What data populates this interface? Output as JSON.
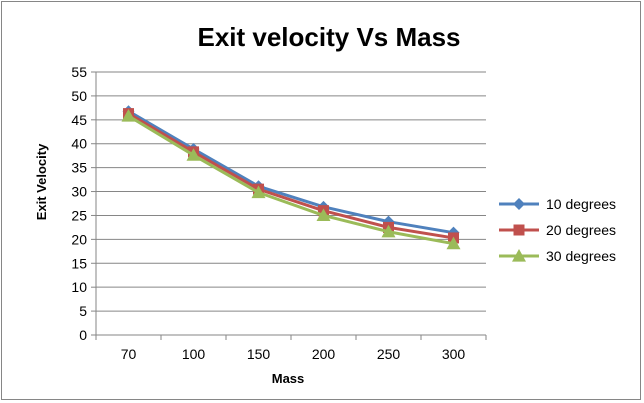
{
  "chart_data": {
    "type": "line",
    "title": "Exit velocity Vs Mass",
    "xlabel": "Mass",
    "ylabel": "Exit Velocity",
    "categories": [
      "70",
      "100",
      "150",
      "200",
      "250",
      "300"
    ],
    "ylim": [
      0,
      55
    ],
    "yticks": [
      0,
      5,
      10,
      15,
      20,
      25,
      30,
      35,
      40,
      45,
      50,
      55
    ],
    "grid": true,
    "legend_position": "right",
    "series": [
      {
        "name": "10 degrees",
        "color": "#4F81BD",
        "marker": "diamond",
        "values": [
          46.8,
          38.9,
          31.1,
          26.8,
          23.7,
          21.4
        ]
      },
      {
        "name": "20 degrees",
        "color": "#C0504D",
        "marker": "square",
        "values": [
          46.3,
          38.3,
          30.5,
          26.0,
          22.5,
          20.3
        ]
      },
      {
        "name": "30 degrees",
        "color": "#9BBB59",
        "marker": "triangle",
        "values": [
          45.8,
          37.6,
          29.8,
          25.0,
          21.6,
          19.1
        ]
      }
    ]
  }
}
